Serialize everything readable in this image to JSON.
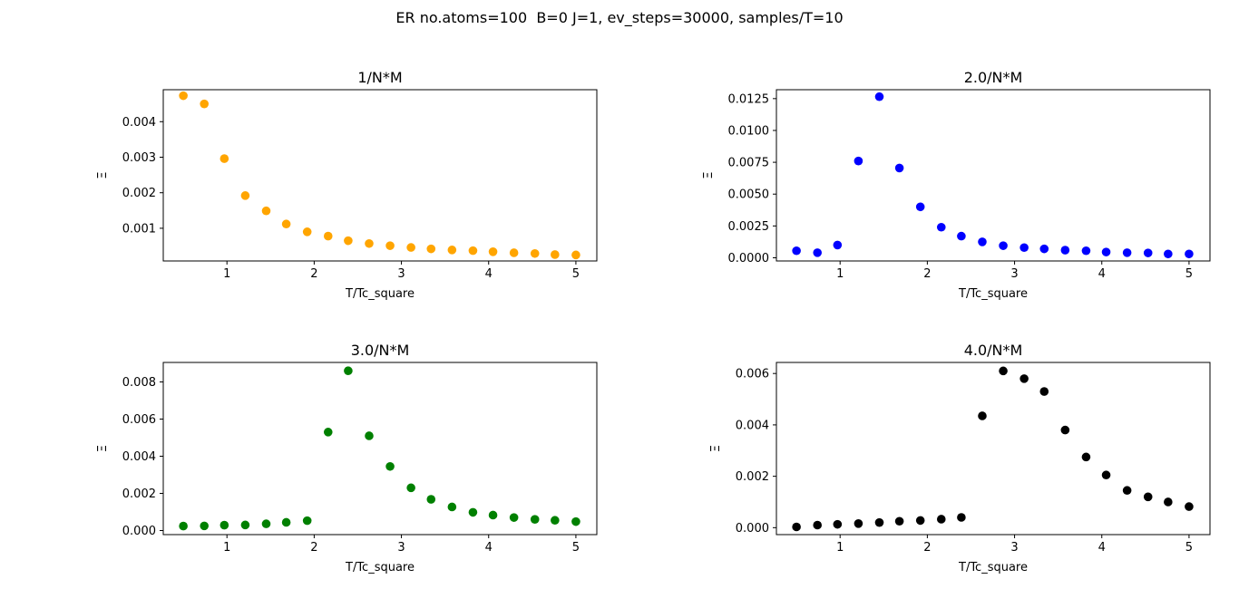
{
  "figure": {
    "suptitle": "ER no.atoms=100  B=0 J=1, ev_steps=30000, samples/T=10"
  },
  "chart_data": [
    {
      "type": "scatter",
      "title": "1/N*M",
      "xlabel": "T/Tc_square",
      "ylabel": "Ξ",
      "color": "#ffa500",
      "xlim": [
        0.27,
        5.24
      ],
      "ylim": [
        8e-05,
        0.0049
      ],
      "xticks": [
        1,
        2,
        3,
        4,
        5
      ],
      "yticks": [
        0.001,
        0.002,
        0.003,
        0.004
      ],
      "ytick_labels": [
        "0.001",
        "0.002",
        "0.003",
        "0.004"
      ],
      "x": [
        0.5,
        0.74,
        0.97,
        1.21,
        1.45,
        1.68,
        1.92,
        2.16,
        2.39,
        2.63,
        2.87,
        3.11,
        3.34,
        3.58,
        3.82,
        4.05,
        4.29,
        4.53,
        4.76,
        5.0
      ],
      "y": [
        0.00473,
        0.0045,
        0.00296,
        0.00192,
        0.00149,
        0.00112,
        0.0009,
        0.00078,
        0.00065,
        0.00057,
        0.00051,
        0.00046,
        0.00042,
        0.00039,
        0.00037,
        0.00034,
        0.00031,
        0.00029,
        0.00026,
        0.00025
      ]
    },
    {
      "type": "scatter",
      "title": "2.0/N*M",
      "xlabel": "T/Tc_square",
      "ylabel": "Ξ",
      "color": "#0000ff",
      "xlim": [
        0.27,
        5.24
      ],
      "ylim": [
        -0.00025,
        0.0132
      ],
      "xticks": [
        1,
        2,
        3,
        4,
        5
      ],
      "yticks": [
        0.0,
        0.0025,
        0.005,
        0.0075,
        0.01,
        0.0125
      ],
      "ytick_labels": [
        "0.0000",
        "0.0025",
        "0.0050",
        "0.0075",
        "0.0100",
        "0.0125"
      ],
      "x": [
        0.5,
        0.74,
        0.97,
        1.21,
        1.45,
        1.68,
        1.92,
        2.16,
        2.39,
        2.63,
        2.87,
        3.11,
        3.34,
        3.58,
        3.82,
        4.05,
        4.29,
        4.53,
        4.76,
        5.0
      ],
      "y": [
        0.00055,
        0.0004,
        0.001,
        0.0076,
        0.01265,
        0.00705,
        0.004,
        0.0024,
        0.0017,
        0.00125,
        0.00095,
        0.0008,
        0.0007,
        0.0006,
        0.00055,
        0.00045,
        0.0004,
        0.00038,
        0.0003,
        0.0003
      ]
    },
    {
      "type": "scatter",
      "title": "3.0/N*M",
      "xlabel": "T/Tc_square",
      "ylabel": "Ξ",
      "color": "#008000",
      "xlim": [
        0.27,
        5.24
      ],
      "ylim": [
        -0.00022,
        0.00905
      ],
      "xticks": [
        1,
        2,
        3,
        4,
        5
      ],
      "yticks": [
        0.0,
        0.002,
        0.004,
        0.006,
        0.008
      ],
      "ytick_labels": [
        "0.000",
        "0.002",
        "0.004",
        "0.006",
        "0.008"
      ],
      "x": [
        0.5,
        0.74,
        0.97,
        1.21,
        1.45,
        1.68,
        1.92,
        2.16,
        2.39,
        2.63,
        2.87,
        3.11,
        3.34,
        3.58,
        3.82,
        4.05,
        4.29,
        4.53,
        4.76,
        5.0
      ],
      "y": [
        0.00024,
        0.00025,
        0.00029,
        0.0003,
        0.00036,
        0.00044,
        0.00053,
        0.0053,
        0.0086,
        0.0051,
        0.00345,
        0.0023,
        0.00168,
        0.00127,
        0.00098,
        0.00083,
        0.0007,
        0.0006,
        0.00055,
        0.00048
      ]
    },
    {
      "type": "scatter",
      "title": "4.0/N*M",
      "xlabel": "T/Tc_square",
      "ylabel": "Ξ",
      "color": "#000000",
      "xlim": [
        0.27,
        5.24
      ],
      "ylim": [
        -0.00027,
        0.00643
      ],
      "xticks": [
        1,
        2,
        3,
        4,
        5
      ],
      "yticks": [
        0.0,
        0.002,
        0.004,
        0.006
      ],
      "ytick_labels": [
        "0.000",
        "0.002",
        "0.004",
        "0.006"
      ],
      "x": [
        0.5,
        0.74,
        0.97,
        1.21,
        1.45,
        1.68,
        1.92,
        2.16,
        2.39,
        2.63,
        2.87,
        3.11,
        3.34,
        3.58,
        3.82,
        4.05,
        4.29,
        4.53,
        4.76,
        5.0
      ],
      "y": [
        3e-05,
        0.0001,
        0.00013,
        0.00016,
        0.0002,
        0.00025,
        0.00028,
        0.00033,
        0.0004,
        0.00435,
        0.0061,
        0.0058,
        0.0053,
        0.0038,
        0.00275,
        0.00205,
        0.00145,
        0.0012,
        0.001,
        0.00082
      ]
    }
  ]
}
